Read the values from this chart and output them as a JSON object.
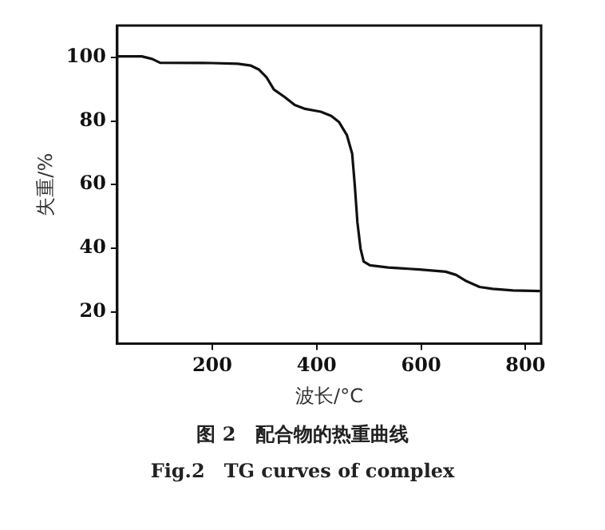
{
  "chart_data": {
    "type": "line",
    "xlabel": "波长/°C",
    "ylabel": "失重/%",
    "annotations": [
      "图 2　配合物的热重曲线",
      "Fig.2　TG curves of complex"
    ],
    "x": [
      18,
      65,
      85,
      100,
      199,
      249,
      274,
      289,
      304,
      318,
      338,
      358,
      378,
      408,
      428,
      443,
      458,
      468,
      473,
      478,
      484,
      490,
      502,
      537,
      597,
      647,
      667,
      687,
      712,
      737,
      776,
      828
    ],
    "series": [
      {
        "color": "#111111",
        "values": [
          100.3,
          100.3,
          99.5,
          98.3,
          98.2,
          98,
          97.4,
          96.2,
          93.7,
          89.9,
          87.6,
          85,
          83.8,
          82.9,
          81.6,
          79.6,
          75.5,
          69.7,
          59.8,
          48.2,
          39.9,
          35.8,
          34.6,
          33.9,
          33.3,
          32.6,
          31.6,
          29.6,
          27.8,
          27.2,
          26.7,
          26.5
        ]
      }
    ],
    "xlim": [
      18,
      830
    ],
    "ylim": [
      10,
      110
    ],
    "xticks": [
      200,
      400,
      600,
      800
    ],
    "yticks": [
      20,
      40,
      60,
      80,
      100
    ],
    "grid": false,
    "legend": false,
    "marker": "none",
    "line_style": "solid"
  }
}
